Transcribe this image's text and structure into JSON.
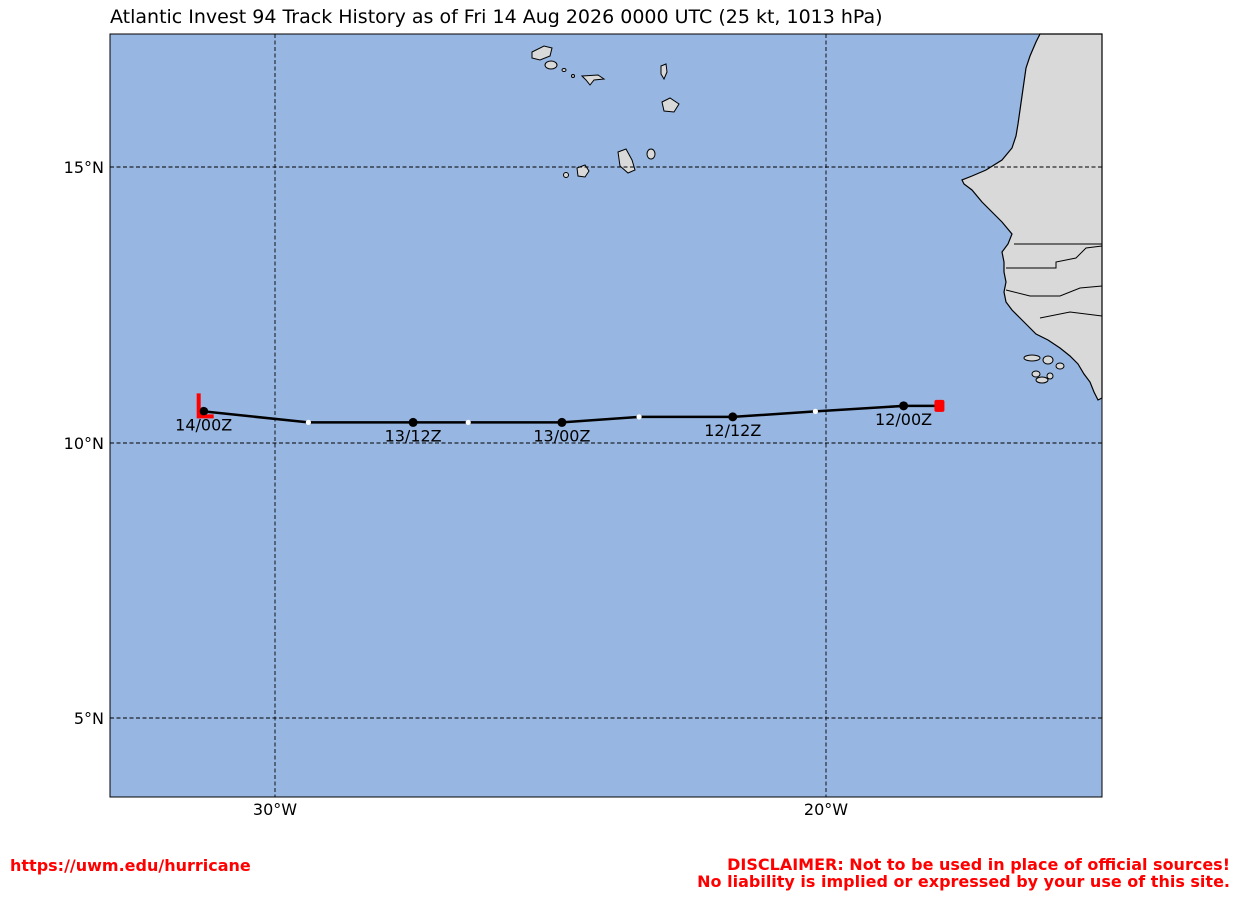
{
  "title": "Atlantic Invest 94 Track History as of Fri 14 Aug 2026 0000 UTC (25 kt, 1013 hPa)",
  "colors": {
    "ocean": "#97b6e1",
    "land": "#d9d9d9",
    "track": "#000000",
    "marker": "#ff0000",
    "footer_text": "#ff0000"
  },
  "map": {
    "lon_range": [
      -33,
      -15
    ],
    "lat_range": [
      3.5,
      17.35
    ],
    "gridlines": "dashed",
    "lat_labels": [
      "15°N",
      "10°N",
      "5°N"
    ],
    "lon_labels": [
      "30°W",
      "20°W"
    ]
  },
  "storm": {
    "current_marker": "tropical-depression-symbol",
    "genesis_marker": "square",
    "track": [
      {
        "lon": -17.95,
        "lat": 10.6,
        "label": "",
        "kind": "start"
      },
      {
        "lon": -18.6,
        "lat": 10.6,
        "label": "12/00Z",
        "kind": "major"
      },
      {
        "lon": -20.2,
        "lat": 10.5,
        "label": "",
        "kind": "minor"
      },
      {
        "lon": -21.7,
        "lat": 10.4,
        "label": "12/12Z",
        "kind": "major"
      },
      {
        "lon": -23.4,
        "lat": 10.4,
        "label": "",
        "kind": "minor"
      },
      {
        "lon": -24.8,
        "lat": 10.3,
        "label": "13/00Z",
        "kind": "major"
      },
      {
        "lon": -26.5,
        "lat": 10.3,
        "label": "",
        "kind": "minor"
      },
      {
        "lon": -27.5,
        "lat": 10.3,
        "label": "13/12Z",
        "kind": "major"
      },
      {
        "lon": -29.4,
        "lat": 10.3,
        "label": "",
        "kind": "minor"
      },
      {
        "lon": -31.3,
        "lat": 10.5,
        "label": "14/00Z",
        "kind": "major"
      }
    ]
  },
  "footer": {
    "url": "https://uwm.edu/hurricane",
    "disclaimer_line1": "DISCLAIMER: Not to be used in place of official sources!",
    "disclaimer_line2": "No liability is implied or expressed by your use of this site."
  }
}
